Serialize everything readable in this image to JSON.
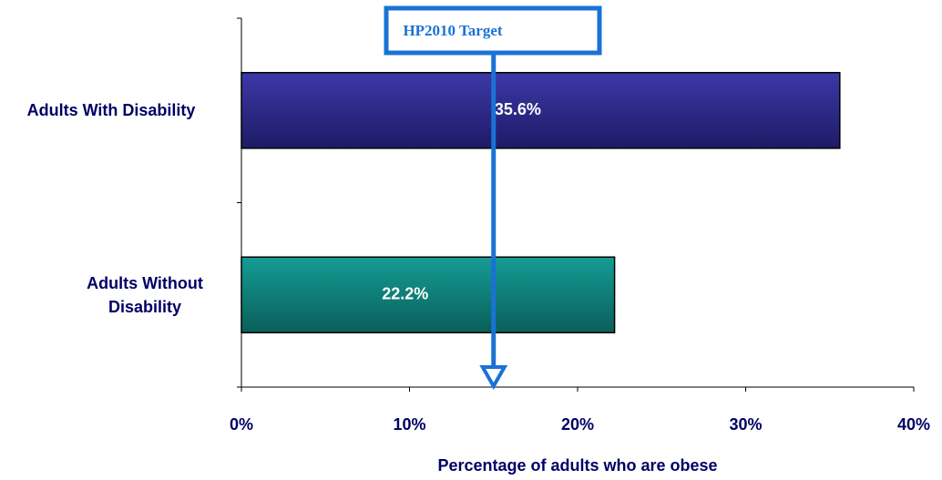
{
  "chart_data": {
    "type": "barh",
    "categories": [
      "Adults With Disability",
      "Adults Without Disability"
    ],
    "values": [
      35.6,
      22.2
    ],
    "value_labels": [
      "35.6%",
      "22.2%"
    ],
    "colors": [
      "#2f2b8c",
      "#0f7f79"
    ],
    "xlabel": "Percentage of adults who are obese",
    "xlim": [
      0,
      40
    ],
    "xticks": [
      {
        "value": 0,
        "label": "0%"
      },
      {
        "value": 10,
        "label": "10%"
      },
      {
        "value": 20,
        "label": "20%"
      },
      {
        "value": 30,
        "label": "30%"
      },
      {
        "value": 40,
        "label": "40%"
      }
    ],
    "annotation": {
      "text": "HP2010 Target",
      "x": 15
    }
  }
}
